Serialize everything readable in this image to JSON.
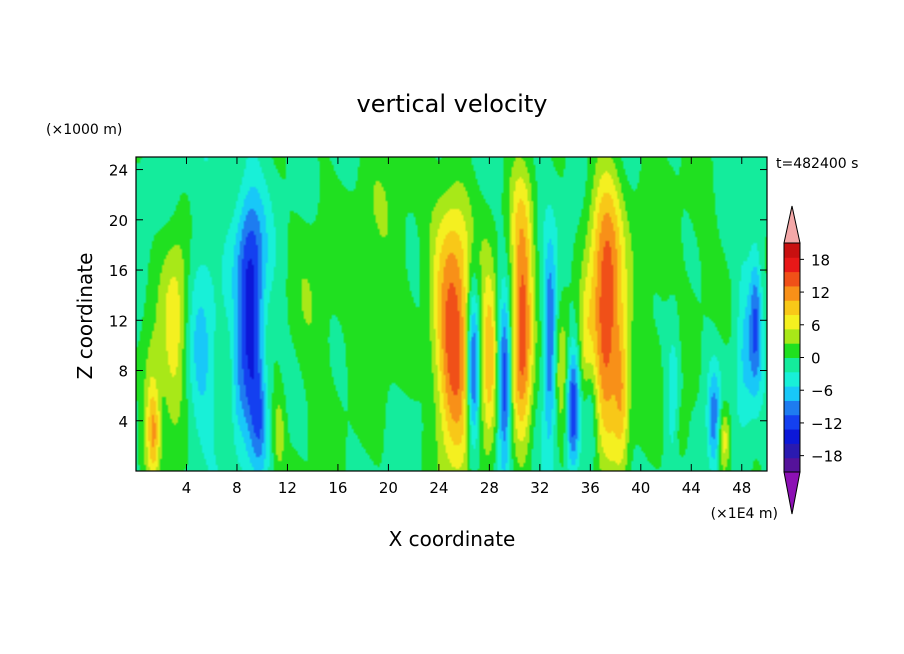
{
  "chart_data": {
    "type": "heatmap",
    "title": "vertical velocity",
    "xlabel": "X coordinate",
    "ylabel": "Z coordinate",
    "x_unit": "(×1E4 m)",
    "y_unit": "(×1000 m)",
    "time_label": "t=482400 s",
    "xlim": [
      0,
      50
    ],
    "ylim": [
      0,
      25
    ],
    "x_ticks": [
      4,
      8,
      12,
      16,
      20,
      24,
      28,
      32,
      36,
      40,
      44,
      48
    ],
    "y_ticks": [
      4,
      8,
      12,
      16,
      20,
      24
    ],
    "x_tick_labels": [
      "4",
      "8",
      "12",
      "16",
      "20",
      "24",
      "28",
      "32",
      "36",
      "40",
      "44",
      "48"
    ],
    "y_tick_labels": [
      "4",
      "8",
      "12",
      "16",
      "20",
      "24"
    ],
    "colorbar": {
      "levels": [
        -21,
        -18,
        -15,
        -12,
        -9,
        -6,
        -3,
        0,
        3,
        6,
        9,
        12,
        15,
        18,
        21
      ],
      "colors": [
        "#55129a",
        "#2a1ab0",
        "#0c18d8",
        "#1440f0",
        "#1e7cf0",
        "#18c8f8",
        "#18f0d8",
        "#14ec9c",
        "#20e020",
        "#a8e818",
        "#f4f020",
        "#f8c818",
        "#f89018",
        "#f05018",
        "#e81818",
        "#c81010"
      ],
      "over_color": "#f4a8a8",
      "under_color": "#8c10b4",
      "tick_values": [
        18,
        12,
        6,
        0,
        -6,
        -12,
        -18
      ],
      "tick_labels": [
        "18",
        "12",
        "6",
        "0",
        "−6",
        "−12",
        "−18"
      ]
    },
    "features": [
      {
        "x": 1.2,
        "z": 6,
        "amp": 7,
        "sx": 0.55,
        "sz": 4.5
      },
      {
        "x": 2.8,
        "z": 10,
        "amp": 7,
        "sx": 0.7,
        "sz": 6
      },
      {
        "x": 3.6,
        "z": 14,
        "amp": 4,
        "sx": 0.6,
        "sz": 5
      },
      {
        "x": 5.2,
        "z": 10,
        "amp": -5,
        "sx": 0.8,
        "sz": 7
      },
      {
        "x": 9.1,
        "z": 10,
        "amp": -14,
        "sx": 0.7,
        "sz": 5.5
      },
      {
        "x": 9.0,
        "z": 18,
        "amp": -8,
        "sx": 0.9,
        "sz": 4
      },
      {
        "x": 9.8,
        "z": 4,
        "amp": -6,
        "sx": 0.4,
        "sz": 3
      },
      {
        "x": 11.3,
        "z": 3,
        "amp": 6,
        "sx": 0.35,
        "sz": 2.2
      },
      {
        "x": 8.0,
        "z": 6,
        "amp": -4,
        "sx": 0.4,
        "sz": 3
      },
      {
        "x": 25.2,
        "z": 9,
        "amp": 18,
        "sx": 1.1,
        "sz": 6.5
      },
      {
        "x": 25.0,
        "z": 19,
        "amp": 6,
        "sx": 1.2,
        "sz": 4
      },
      {
        "x": 26.7,
        "z": 8,
        "amp": -16,
        "sx": 0.35,
        "sz": 5
      },
      {
        "x": 28.0,
        "z": 9,
        "amp": 13,
        "sx": 0.45,
        "sz": 5
      },
      {
        "x": 29.2,
        "z": 7,
        "amp": -15,
        "sx": 0.35,
        "sz": 4.5
      },
      {
        "x": 30.6,
        "z": 11,
        "amp": 19,
        "sx": 0.6,
        "sz": 6
      },
      {
        "x": 30.4,
        "z": 20,
        "amp": 5,
        "sx": 0.8,
        "sz": 4
      },
      {
        "x": 32.8,
        "z": 10,
        "amp": -13,
        "sx": 0.35,
        "sz": 5
      },
      {
        "x": 33.8,
        "z": 8,
        "amp": 7,
        "sx": 0.5,
        "sz": 4
      },
      {
        "x": 34.6,
        "z": 5,
        "amp": -14,
        "sx": 0.35,
        "sz": 3.5
      },
      {
        "x": 35.6,
        "z": 9,
        "amp": 6,
        "sx": 0.4,
        "sz": 4
      },
      {
        "x": 37.3,
        "z": 11,
        "amp": 18,
        "sx": 0.9,
        "sz": 6.5
      },
      {
        "x": 37.0,
        "z": 20,
        "amp": 7,
        "sx": 1.0,
        "sz": 4
      },
      {
        "x": 38.5,
        "z": 6,
        "amp": 8,
        "sx": 0.4,
        "sz": 4
      },
      {
        "x": 36.0,
        "z": 5,
        "amp": -6,
        "sx": 0.4,
        "sz": 3
      },
      {
        "x": 42.6,
        "z": 7,
        "amp": -5,
        "sx": 0.4,
        "sz": 4
      },
      {
        "x": 43.2,
        "z": 3,
        "amp": 5,
        "sx": 0.4,
        "sz": 2
      },
      {
        "x": 45.8,
        "z": 4,
        "amp": -9,
        "sx": 0.35,
        "sz": 3
      },
      {
        "x": 46.6,
        "z": 2.5,
        "amp": 10,
        "sx": 0.35,
        "sz": 2
      },
      {
        "x": 49.1,
        "z": 12,
        "amp": -10,
        "sx": 0.35,
        "sz": 4
      },
      {
        "x": 48.2,
        "z": 9,
        "amp": -5,
        "sx": 0.5,
        "sz": 5
      },
      {
        "x": 1.4,
        "z": 3,
        "amp": 9,
        "sx": 0.35,
        "sz": 2.5
      },
      {
        "x": 14.0,
        "z": 12,
        "amp": 3,
        "sx": 1.5,
        "sz": 10
      },
      {
        "x": 18.5,
        "z": 14,
        "amp": 3,
        "sx": 1.8,
        "sz": 9
      },
      {
        "x": 21.0,
        "z": 20,
        "amp": 2,
        "sx": 1.5,
        "sz": 5
      },
      {
        "x": 40.5,
        "z": 14,
        "amp": 3,
        "sx": 1.5,
        "sz": 9
      },
      {
        "x": 44.5,
        "z": 18,
        "amp": 2.5,
        "sx": 1.5,
        "sz": 6
      }
    ],
    "background": -1.2
  }
}
